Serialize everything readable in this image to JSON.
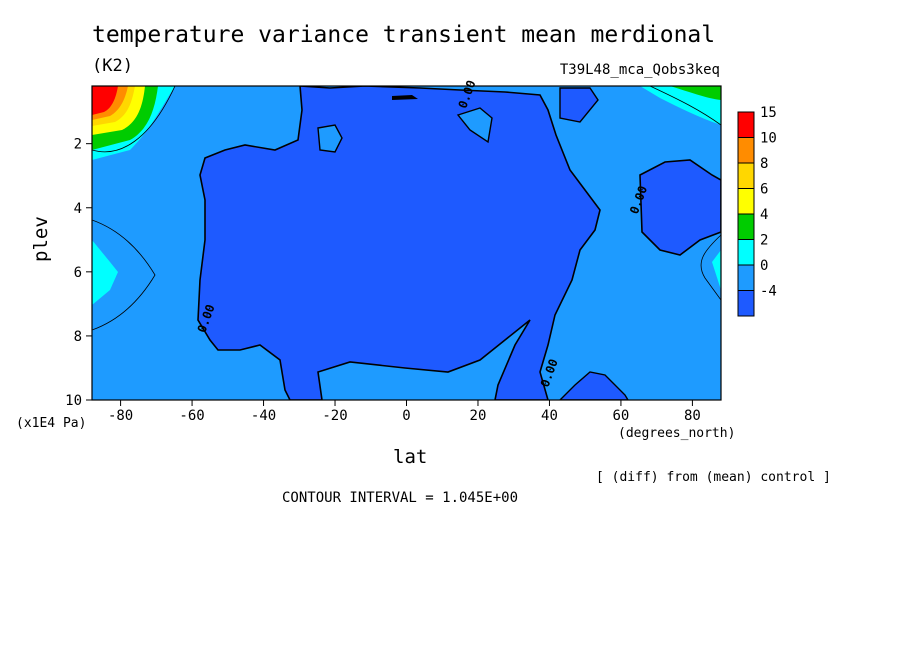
{
  "header": {
    "title": "temperature variance transient mean merdional",
    "units": "(K2)",
    "dataset": "T39L48_mca_Qobs3keq"
  },
  "footer": {
    "note": "[ (diff) from (mean) control ]",
    "contour_interval": "CONTOUR INTERVAL = 1.045E+00"
  },
  "chart_data": {
    "type": "heatmap",
    "title": "temperature variance transient mean merdional",
    "xlabel": "lat",
    "ylabel": "plev",
    "x_units": "(degrees_north)",
    "y_units": "(x1E4 Pa)",
    "xlim": [
      -88,
      88
    ],
    "ylim": [
      10,
      0.2
    ],
    "x_ticks": [
      -80,
      -60,
      -40,
      -20,
      0,
      20,
      40,
      60,
      80
    ],
    "x_tick_labels": [
      "-80",
      "-60",
      "-40",
      "-20",
      "0",
      "20",
      "40",
      "60",
      "80"
    ],
    "y_ticks": [
      2,
      4,
      6,
      8,
      10
    ],
    "y_tick_labels": [
      "2",
      "4",
      "6",
      "8",
      "10"
    ],
    "colorbar": {
      "levels": [
        15,
        10,
        8,
        6,
        4,
        2,
        0,
        -4
      ],
      "labels": [
        "15",
        "10",
        "8",
        "6",
        "4",
        "2",
        "0",
        "-4"
      ],
      "colors": [
        "#ff0000",
        "#ff8c00",
        "#ffd700",
        "#ffff00",
        "#00cc00",
        "#00ffff",
        "#1e9bff",
        "#1e5aff"
      ]
    },
    "contour_labels": [
      {
        "text": "0.00",
        "lat": 18,
        "plev": 0.5
      },
      {
        "text": "0.00",
        "lat": 66,
        "plev": 3.8
      },
      {
        "text": "0.00",
        "lat": -55,
        "plev": 7.5
      },
      {
        "text": "0.00",
        "lat": 41,
        "plev": 9.2
      }
    ]
  }
}
